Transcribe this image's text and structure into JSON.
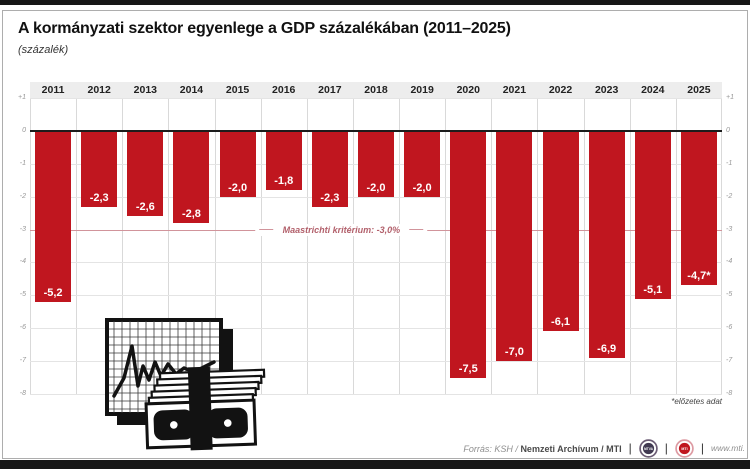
{
  "header": {
    "title": "A kormányzati szektor egyenlege a GDP százalékában (2011–2025)",
    "subtitle": "(százalék)"
  },
  "chart_data": {
    "type": "bar",
    "title": "A kormányzati szektor egyenlege a GDP százalékában (2011–2025)",
    "ylabel": "(százalék)",
    "categories": [
      "2011",
      "2012",
      "2013",
      "2014",
      "2015",
      "2016",
      "2017",
      "2018",
      "2019",
      "2020",
      "2021",
      "2022",
      "2023",
      "2024",
      "2025"
    ],
    "values": [
      -5.2,
      -2.3,
      -2.6,
      -2.8,
      -2.0,
      -1.8,
      -2.3,
      -2.0,
      -2.0,
      -7.5,
      -7.0,
      -6.1,
      -6.9,
      -5.1,
      -4.7
    ],
    "value_labels": [
      "-5,2",
      "-2,3",
      "-2,6",
      "-2,8",
      "-2,0",
      "-1,8",
      "-2,3",
      "-2,0",
      "-2,0",
      "-7,5",
      "-7,0",
      "-6,1",
      "-6,9",
      "-5,1",
      "-4,7*"
    ],
    "ylim": [
      -8,
      1
    ],
    "yticks": [
      "+1",
      "0",
      "-1",
      "-2",
      "-3",
      "-4",
      "-5",
      "-6",
      "-7",
      "-8"
    ],
    "grid": true,
    "legend": "none",
    "bar_color": "#c0161f",
    "reference_line": {
      "value": -3.0,
      "label": "Maastrichti kritérium: -3,0%",
      "color": "#d1949b"
    },
    "footnote": "*előzetes adat"
  },
  "footer": {
    "source_prefix": "Forrás: KSH / ",
    "source_bold": "Nemzeti Archívum / MTI",
    "separator": "|",
    "logo1_label": "MTVA",
    "logo2_label": "MTI",
    "url": "www.mti."
  }
}
